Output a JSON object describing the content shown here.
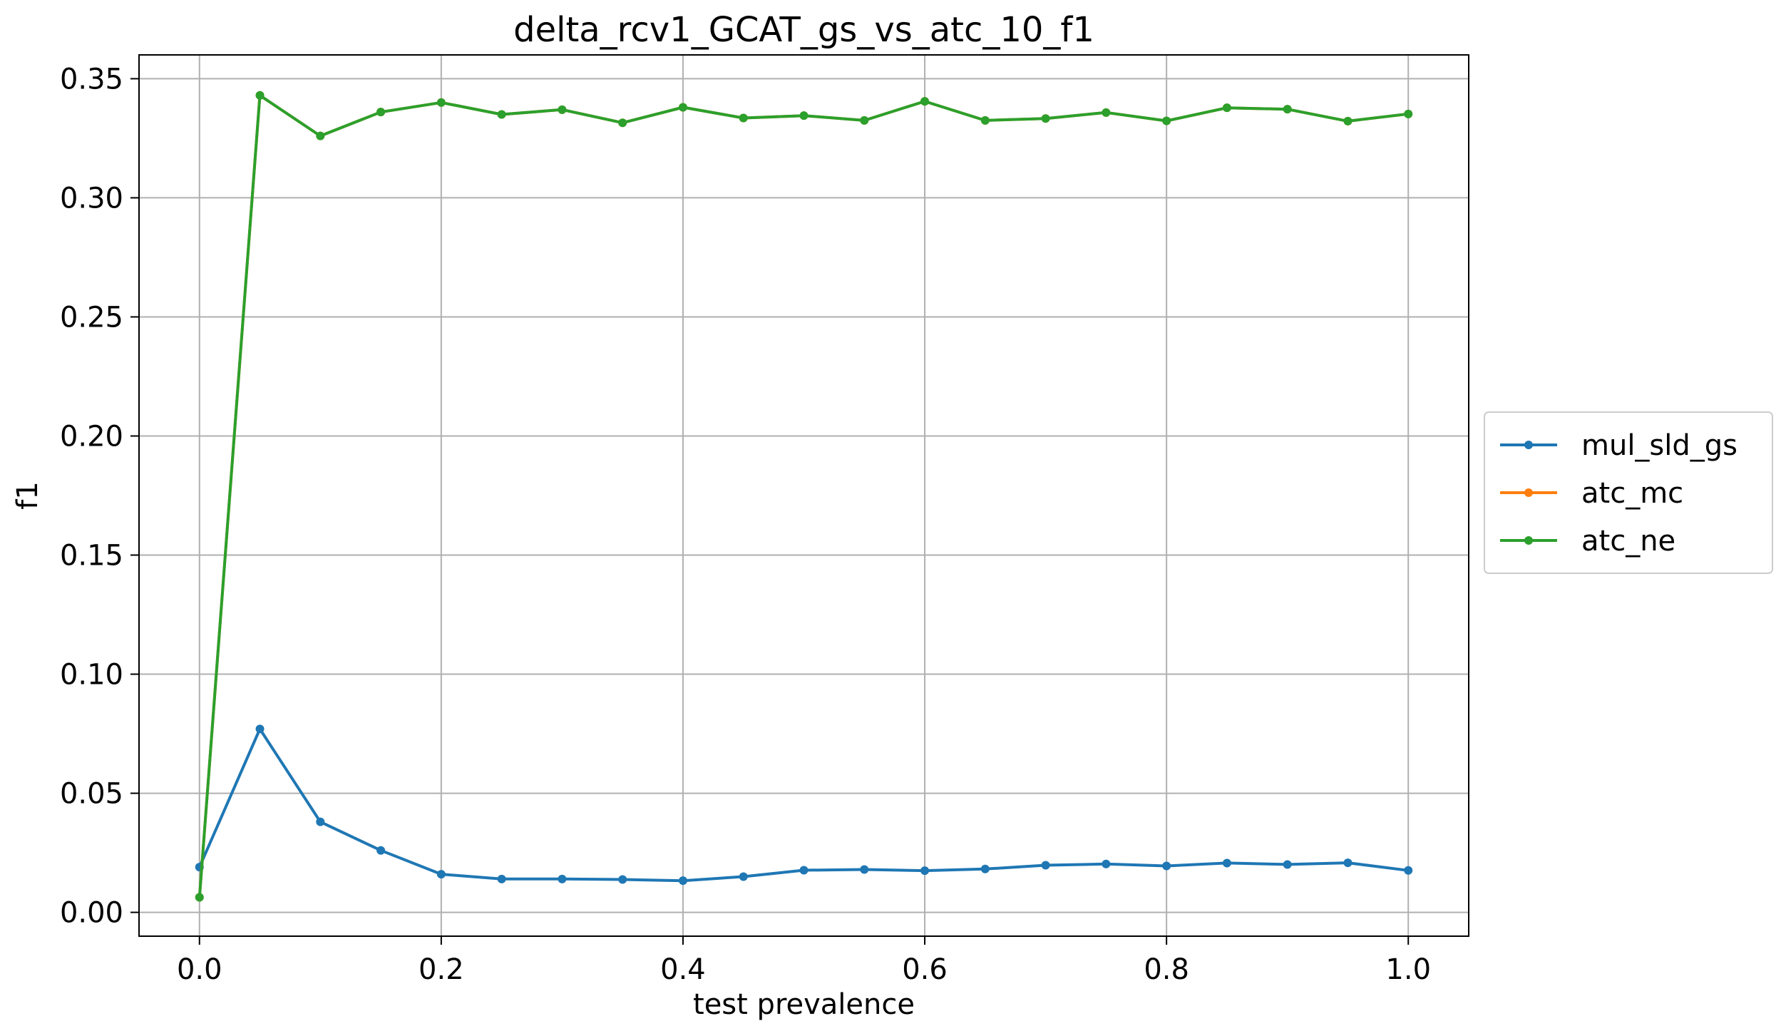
{
  "chart_data": {
    "type": "line",
    "title": "delta_rcv1_GCAT_gs_vs_atc_10_f1",
    "xlabel": "test prevalence",
    "ylabel": "f1",
    "xlim": [
      -0.05,
      1.05
    ],
    "ylim": [
      -0.01,
      0.36
    ],
    "xticks": [
      0.0,
      0.2,
      0.4,
      0.6,
      0.8,
      1.0
    ],
    "xtick_labels": [
      "0.0",
      "0.2",
      "0.4",
      "0.6",
      "0.8",
      "1.0"
    ],
    "yticks": [
      0.0,
      0.05,
      0.1,
      0.15,
      0.2,
      0.25,
      0.3,
      0.35
    ],
    "ytick_labels": [
      "0.00",
      "0.05",
      "0.10",
      "0.15",
      "0.20",
      "0.25",
      "0.30",
      "0.35"
    ],
    "grid": true,
    "legend_position": "right-outside",
    "x": [
      0.0,
      0.05,
      0.1,
      0.15,
      0.2,
      0.25,
      0.3,
      0.35,
      0.4,
      0.45,
      0.5,
      0.55,
      0.6,
      0.65,
      0.7,
      0.75,
      0.8,
      0.85,
      0.9,
      0.95,
      1.0
    ],
    "series": [
      {
        "name": "mul_sld_gs",
        "color": "#1f77b4",
        "values": [
          0.019,
          0.077,
          0.038,
          0.026,
          0.016,
          0.014,
          0.014,
          0.0138,
          0.0133,
          0.015,
          0.0177,
          0.018,
          0.0175,
          0.0182,
          0.0198,
          0.0203,
          0.0195,
          0.0207,
          0.0201,
          0.0208,
          0.0176
        ]
      },
      {
        "name": "atc_mc",
        "color": "#ff7f0e",
        "values": [
          0.0063,
          0.343,
          0.326,
          0.336,
          0.34,
          0.335,
          0.337,
          0.3315,
          0.338,
          0.3335,
          0.3345,
          0.3325,
          0.3405,
          0.3325,
          0.3333,
          0.3358,
          0.3323,
          0.3378,
          0.3372,
          0.3322,
          0.3352
        ]
      },
      {
        "name": "atc_ne",
        "color": "#2ca02c",
        "values": [
          0.0063,
          0.343,
          0.326,
          0.336,
          0.34,
          0.335,
          0.337,
          0.3315,
          0.338,
          0.3335,
          0.3345,
          0.3325,
          0.3405,
          0.3325,
          0.3333,
          0.3358,
          0.3323,
          0.3378,
          0.3372,
          0.3322,
          0.3352
        ]
      }
    ]
  }
}
